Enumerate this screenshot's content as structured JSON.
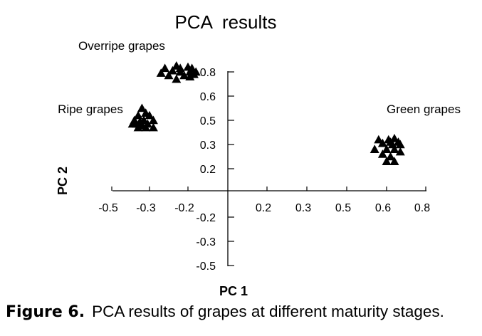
{
  "chart_data": {
    "type": "scatter",
    "title": "PCA  results",
    "xlabel": "PC 1",
    "ylabel": "PC 2",
    "x_ticks": [
      "-0.5",
      "-0.3",
      "-0.2",
      "0.2",
      "0.3",
      "0.5",
      "0.6",
      "0.8"
    ],
    "y_ticks": [
      "0.8",
      "0.6",
      "0.5",
      "0.3",
      "0.2",
      "-0.2",
      "-0.3",
      "-0.5"
    ],
    "marker": "filled-triangle",
    "grid": false,
    "legend": "none",
    "groups": [
      {
        "label": "Overripe grapes",
        "points": [
          [
            -0.23,
            0.85
          ],
          [
            -0.26,
            0.83
          ],
          [
            -0.22,
            0.83
          ],
          [
            -0.2,
            0.84
          ],
          [
            -0.18,
            0.83
          ],
          [
            -0.24,
            0.81
          ],
          [
            -0.27,
            0.79
          ],
          [
            -0.22,
            0.8
          ],
          [
            -0.19,
            0.8
          ],
          [
            -0.16,
            0.8
          ],
          [
            -0.25,
            0.77
          ],
          [
            -0.21,
            0.77
          ],
          [
            -0.19,
            0.76
          ],
          [
            -0.17,
            0.78
          ],
          [
            -0.23,
            0.74
          ]
        ]
      },
      {
        "label": "Ripe grapes",
        "points": [
          [
            -0.34,
            0.55
          ],
          [
            -0.36,
            0.52
          ],
          [
            -0.32,
            0.53
          ],
          [
            -0.3,
            0.52
          ],
          [
            -0.38,
            0.5
          ],
          [
            -0.35,
            0.49
          ],
          [
            -0.33,
            0.5
          ],
          [
            -0.29,
            0.5
          ],
          [
            -0.39,
            0.47
          ],
          [
            -0.37,
            0.47
          ],
          [
            -0.34,
            0.46
          ],
          [
            -0.31,
            0.47
          ],
          [
            -0.36,
            0.44
          ],
          [
            -0.32,
            0.44
          ],
          [
            -0.29,
            0.44
          ]
        ]
      },
      {
        "label": "Green grapes",
        "points": [
          [
            0.58,
            0.34
          ],
          [
            0.61,
            0.34
          ],
          [
            0.64,
            0.35
          ],
          [
            0.62,
            0.32
          ],
          [
            0.66,
            0.32
          ],
          [
            0.59,
            0.31
          ],
          [
            0.63,
            0.3
          ],
          [
            0.67,
            0.3
          ],
          [
            0.57,
            0.28
          ],
          [
            0.6,
            0.28
          ],
          [
            0.64,
            0.28
          ],
          [
            0.67,
            0.27
          ],
          [
            0.59,
            0.26
          ],
          [
            0.62,
            0.25
          ],
          [
            0.6,
            0.23
          ],
          [
            0.64,
            0.23
          ]
        ]
      }
    ]
  },
  "caption": {
    "label": "Figure 6.",
    "text": "PCA results of grapes at different maturity stages."
  }
}
